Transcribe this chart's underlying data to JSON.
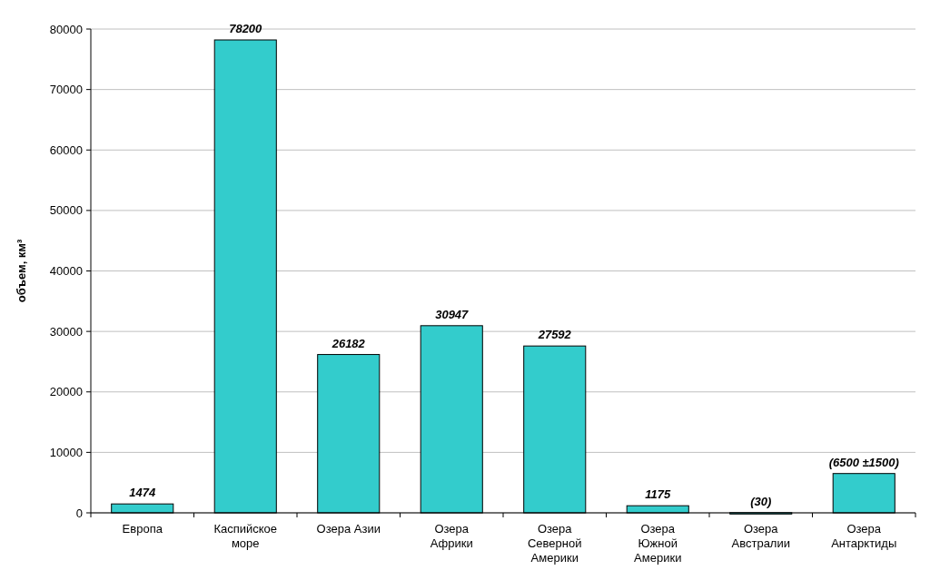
{
  "chart_data": {
    "type": "bar",
    "ylabel": "объем, км³",
    "categories": [
      "Европа",
      "Каспийское море",
      "Озера Азии",
      "Озера Африки",
      "Озера Северной Америки",
      "Озера Южной Америки",
      "Озера Австралии",
      "Озера Антарктиды"
    ],
    "values": [
      1474,
      78200,
      26182,
      30947,
      27592,
      1175,
      30,
      6500
    ],
    "value_labels": [
      "1474",
      "78200",
      "26182",
      "30947",
      "27592",
      "1175",
      "(30)",
      "(6500 ±1500)"
    ],
    "color": "#33cccc",
    "ylim": [
      0,
      80000
    ],
    "yticks": [
      0,
      10000,
      20000,
      30000,
      40000,
      50000,
      60000,
      70000,
      80000
    ],
    "grid": "y"
  }
}
